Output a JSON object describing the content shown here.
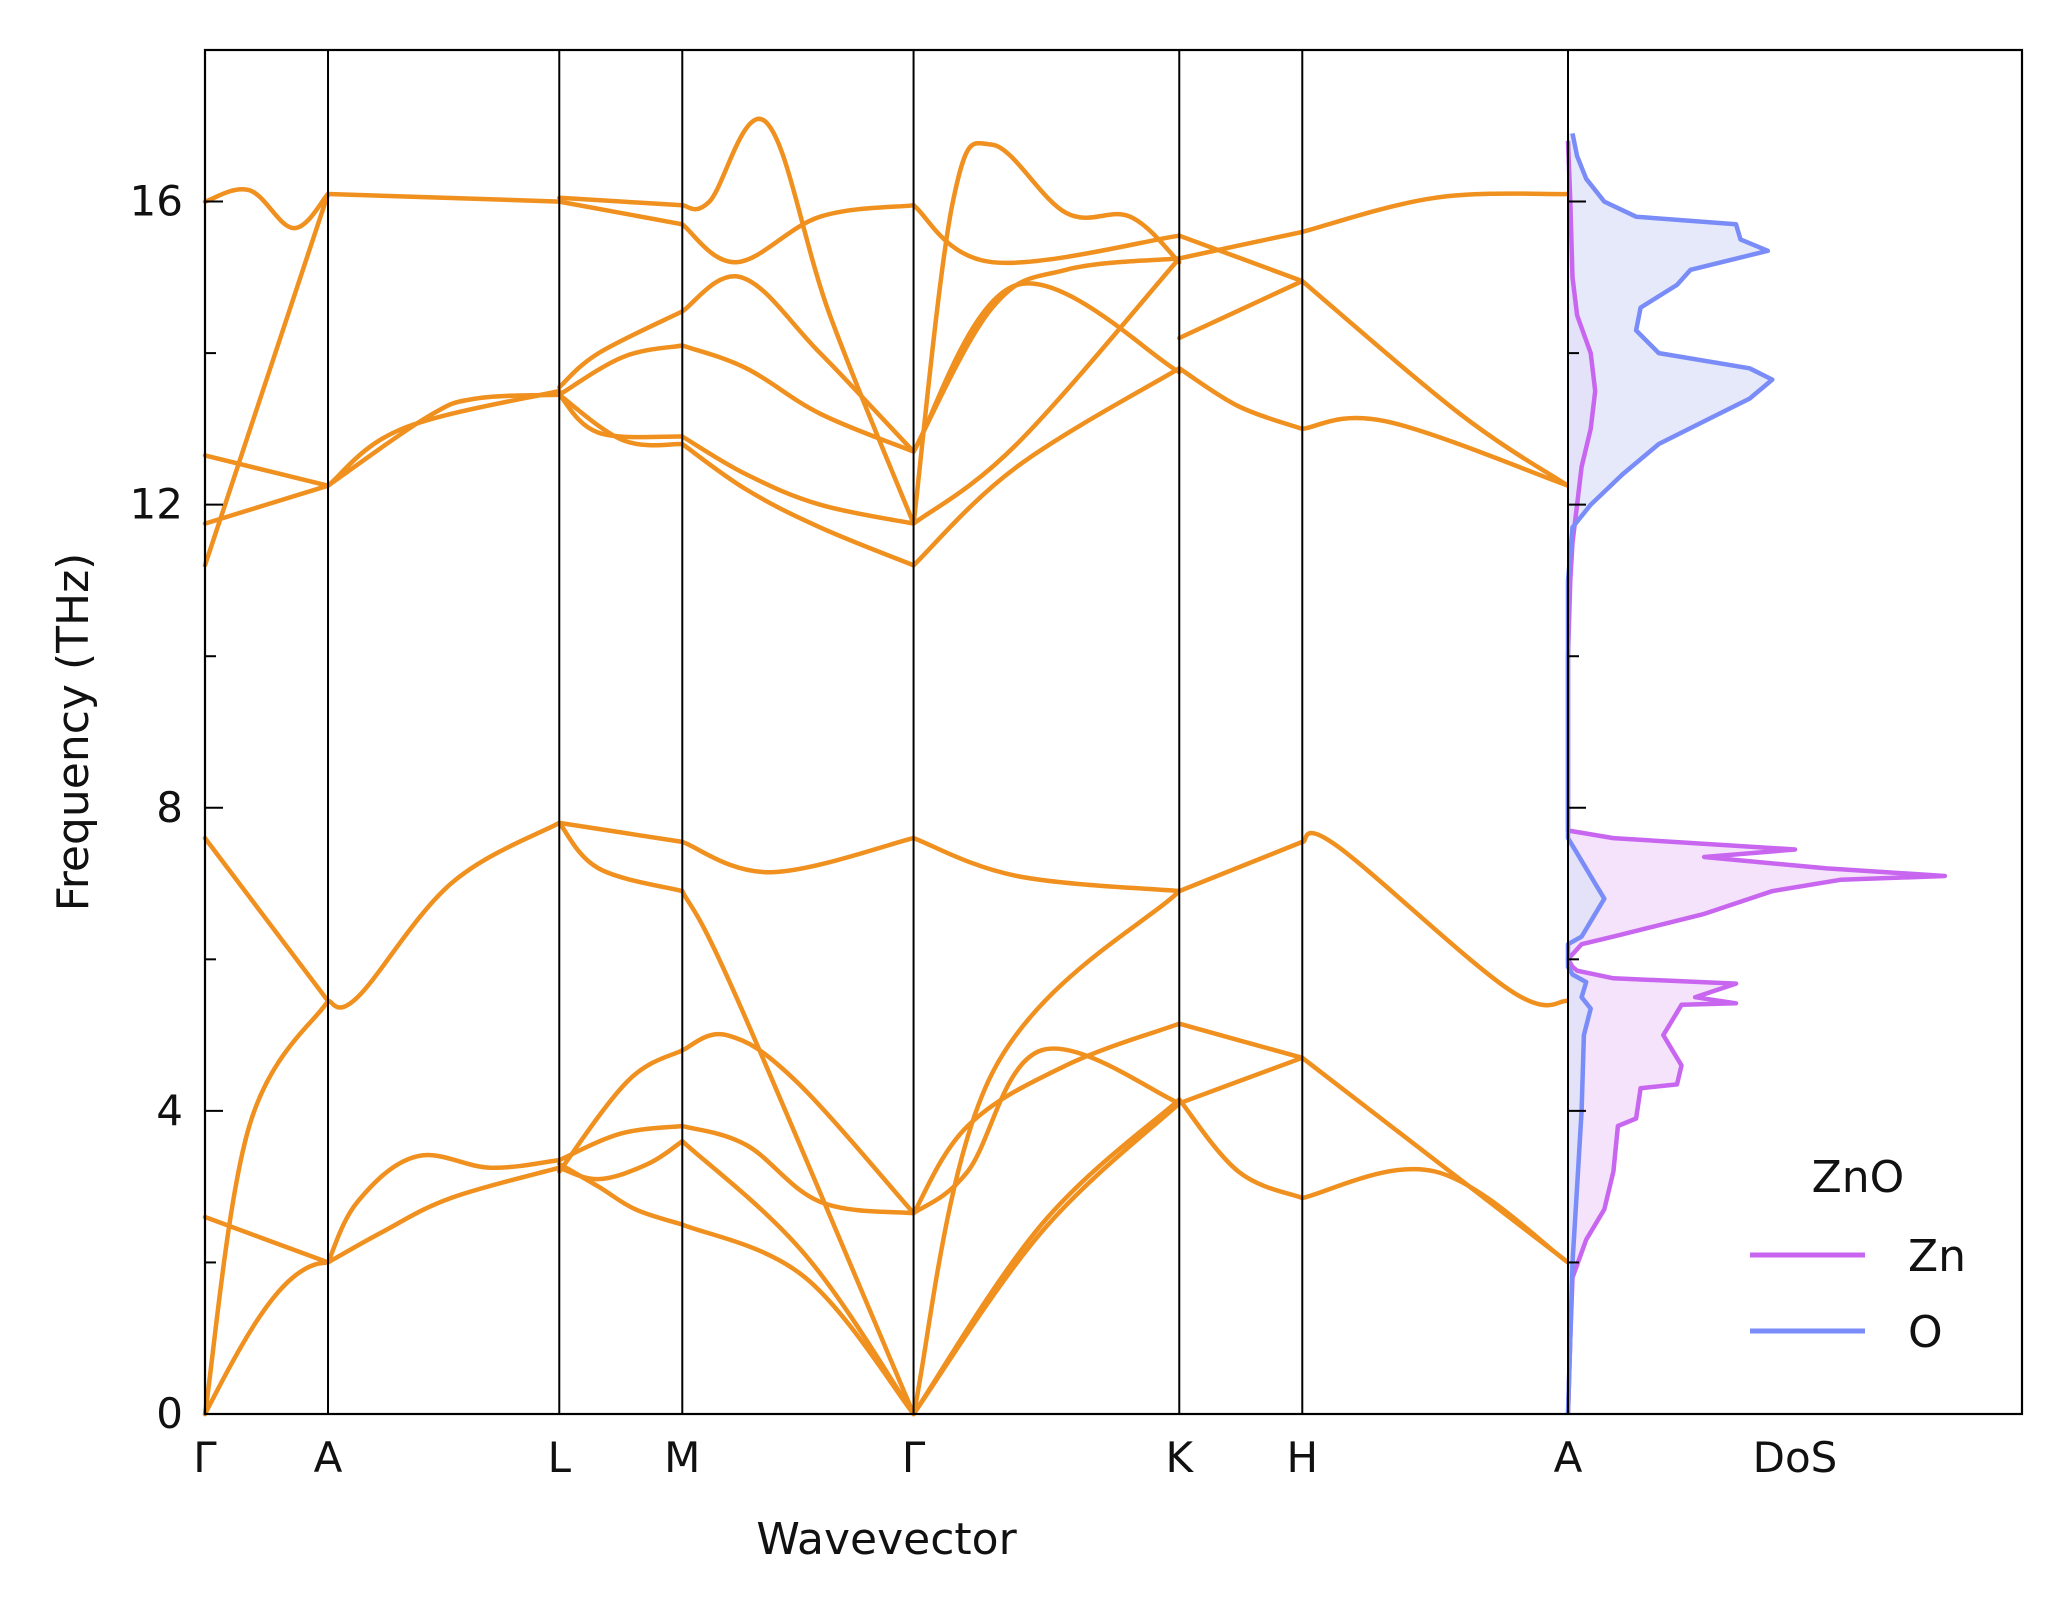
{
  "chart_data": {
    "type": "line",
    "title": "",
    "xlabel": "Wavevector",
    "ylabel": "Frequency (THz)",
    "ylim": [
      0,
      18
    ],
    "yticks": [
      0,
      4,
      8,
      12,
      16
    ],
    "grid": false,
    "band_color": "#f0901e",
    "segment_line_color": "#000000",
    "high_symmetry_points": [
      {
        "label": "Γ",
        "x": 0.0
      },
      {
        "label": "A",
        "x": 0.5
      },
      {
        "label": "L",
        "x": 1.44
      },
      {
        "label": "M",
        "x": 1.94
      },
      {
        "label": "Γ",
        "x": 2.88
      },
      {
        "label": "K",
        "x": 3.96
      },
      {
        "label": "H",
        "x": 4.46
      },
      {
        "label": "A",
        "x": 5.54
      }
    ],
    "bands": [
      {
        "x": [
          0.0,
          0.5
        ],
        "y": [
          0.0,
          2.0
        ],
        "shape": "sin"
      },
      {
        "x": [
          0.0,
          0.18,
          0.5
        ],
        "y": [
          0.0,
          3.8,
          5.45
        ]
      },
      {
        "x": [
          0.0,
          0.5
        ],
        "y": [
          2.6,
          2.0
        ]
      },
      {
        "x": [
          0.0,
          0.5
        ],
        "y": [
          7.6,
          5.45
        ]
      },
      {
        "x": [
          0.0,
          0.5
        ],
        "y": [
          11.2,
          16.1
        ]
      },
      {
        "x": [
          0.0,
          0.5
        ],
        "y": [
          11.75,
          12.25
        ]
      },
      {
        "x": [
          0.0,
          0.5
        ],
        "y": [
          12.65,
          12.25
        ]
      },
      {
        "x": [
          0.0,
          0.18,
          0.36,
          0.5
        ],
        "y": [
          16.0,
          16.15,
          15.65,
          16.1
        ]
      },
      {
        "x": [
          0.5,
          0.62,
          0.86,
          1.16,
          1.44
        ],
        "y": [
          2.0,
          2.8,
          3.4,
          3.25,
          3.35
        ]
      },
      {
        "x": [
          0.5,
          0.72,
          1.0,
          1.44
        ],
        "y": [
          2.0,
          2.4,
          2.85,
          3.25
        ]
      },
      {
        "x": [
          0.5,
          0.62,
          1.0,
          1.44
        ],
        "y": [
          5.45,
          5.5,
          7.0,
          7.8
        ]
      },
      {
        "x": [
          0.5,
          0.8,
          1.44
        ],
        "y": [
          12.25,
          13.0,
          13.5
        ]
      },
      {
        "x": [
          0.5,
          0.9,
          1.1,
          1.44
        ],
        "y": [
          12.25,
          13.15,
          13.4,
          13.45
        ]
      },
      {
        "x": [
          0.5,
          1.44
        ],
        "y": [
          16.1,
          16.0
        ]
      },
      {
        "x": [
          1.44,
          1.69,
          1.94
        ],
        "y": [
          3.35,
          3.7,
          3.8
        ]
      },
      {
        "x": [
          1.44,
          1.6,
          1.75,
          1.94
        ],
        "y": [
          3.3,
          3.0,
          2.7,
          2.5
        ]
      },
      {
        "x": [
          1.44,
          1.72,
          1.94
        ],
        "y": [
          3.2,
          4.4,
          4.8
        ]
      },
      {
        "x": [
          1.44,
          1.6,
          1.8,
          1.94
        ],
        "y": [
          3.25,
          3.1,
          3.3,
          3.6
        ]
      },
      {
        "x": [
          1.44,
          1.6,
          1.94
        ],
        "y": [
          7.8,
          7.2,
          6.9
        ]
      },
      {
        "x": [
          1.44,
          1.94
        ],
        "y": [
          7.8,
          7.55
        ]
      },
      {
        "x": [
          1.44,
          1.6,
          1.94
        ],
        "y": [
          13.55,
          14.0,
          14.55
        ]
      },
      {
        "x": [
          1.44,
          1.7,
          1.94
        ],
        "y": [
          13.45,
          13.95,
          14.1
        ]
      },
      {
        "x": [
          1.44,
          1.6,
          1.94
        ],
        "y": [
          13.45,
          12.95,
          12.9
        ]
      },
      {
        "x": [
          1.44,
          1.7,
          1.94
        ],
        "y": [
          13.45,
          12.85,
          12.8
        ]
      },
      {
        "x": [
          1.44,
          1.94
        ],
        "y": [
          16.0,
          15.7
        ]
      },
      {
        "x": [
          1.44,
          1.94
        ],
        "y": [
          16.05,
          15.95
        ]
      },
      {
        "x": [
          1.94,
          2.44,
          2.88
        ],
        "y": [
          2.5,
          1.8,
          0.0
        ]
      },
      {
        "x": [
          1.94,
          2.44,
          2.88
        ],
        "y": [
          3.6,
          2.1,
          0.0
        ]
      },
      {
        "x": [
          1.94,
          2.2,
          2.5,
          2.88
        ],
        "y": [
          3.8,
          3.55,
          2.8,
          2.65
        ]
      },
      {
        "x": [
          1.94,
          2.12,
          2.4,
          2.88
        ],
        "y": [
          4.8,
          5.0,
          4.4,
          2.65
        ]
      },
      {
        "x": [
          1.94,
          2.16,
          2.88
        ],
        "y": [
          6.9,
          5.5,
          0.0
        ]
      },
      {
        "x": [
          1.94,
          2.3,
          2.88
        ],
        "y": [
          7.55,
          7.15,
          7.6
        ]
      },
      {
        "x": [
          1.94,
          2.2,
          2.5,
          2.88
        ],
        "y": [
          12.8,
          12.2,
          11.7,
          11.2
        ]
      },
      {
        "x": [
          1.94,
          2.2,
          2.5,
          2.88
        ],
        "y": [
          12.9,
          12.4,
          12.0,
          11.75
        ]
      },
      {
        "x": [
          1.94,
          2.2,
          2.5,
          2.88
        ],
        "y": [
          14.1,
          13.8,
          13.2,
          12.7
        ]
      },
      {
        "x": [
          1.94,
          2.18,
          2.5,
          2.88
        ],
        "y": [
          14.55,
          15.0,
          14.0,
          12.7
        ]
      },
      {
        "x": [
          1.94,
          2.16,
          2.5,
          2.88
        ],
        "y": [
          15.7,
          15.2,
          15.8,
          15.95
        ]
      },
      {
        "x": [
          1.94,
          2.05,
          2.28,
          2.54,
          2.88
        ],
        "y": [
          15.95,
          16.0,
          17.05,
          14.5,
          11.75
        ]
      },
      {
        "x": [
          2.88,
          3.4,
          3.96
        ],
        "y": [
          0.0,
          2.4,
          4.1
        ]
      },
      {
        "x": [
          2.88,
          3.4,
          3.96
        ],
        "y": [
          0.0,
          2.5,
          4.15
        ]
      },
      {
        "x": [
          2.88,
          3.2,
          3.96
        ],
        "y": [
          0.0,
          4.5,
          6.9
        ]
      },
      {
        "x": [
          2.88,
          3.1,
          3.4,
          3.96
        ],
        "y": [
          2.65,
          3.2,
          4.8,
          4.1
        ]
      },
      {
        "x": [
          2.88,
          3.1,
          3.5,
          3.96
        ],
        "y": [
          2.65,
          3.8,
          4.6,
          5.15
        ]
      },
      {
        "x": [
          2.88,
          3.3,
          3.96
        ],
        "y": [
          7.6,
          7.1,
          6.9
        ]
      },
      {
        "x": [
          2.88,
          3.3,
          3.96
        ],
        "y": [
          11.2,
          12.5,
          13.8
        ]
      },
      {
        "x": [
          2.88,
          3.3,
          3.96
        ],
        "y": [
          11.75,
          12.8,
          15.25
        ]
      },
      {
        "x": [
          2.88,
          3.3,
          3.96
        ],
        "y": [
          12.7,
          14.9,
          13.75
        ]
      },
      {
        "x": [
          2.88,
          3.2,
          3.5,
          3.96
        ],
        "y": [
          12.7,
          14.6,
          15.1,
          15.25
        ]
      },
      {
        "x": [
          2.88,
          3.2,
          3.96
        ],
        "y": [
          15.95,
          15.2,
          15.55
        ]
      },
      {
        "x": [
          2.88,
          3.04,
          3.2,
          3.5,
          3.76,
          3.96
        ],
        "y": [
          11.75,
          16.0,
          16.75,
          15.85,
          15.8,
          15.2
        ]
      },
      {
        "x": [
          3.96,
          4.46
        ],
        "y": [
          4.1,
          4.7
        ]
      },
      {
        "x": [
          3.96,
          4.2,
          4.46
        ],
        "y": [
          4.15,
          3.2,
          2.85
        ]
      },
      {
        "x": [
          3.96,
          4.46
        ],
        "y": [
          5.15,
          4.7
        ]
      },
      {
        "x": [
          3.96,
          4.46
        ],
        "y": [
          6.9,
          7.55
        ]
      },
      {
        "x": [
          3.96,
          4.2,
          4.46
        ],
        "y": [
          13.8,
          13.3,
          13.0
        ]
      },
      {
        "x": [
          3.96,
          4.46
        ],
        "y": [
          14.2,
          14.95
        ]
      },
      {
        "x": [
          3.96,
          4.46
        ],
        "y": [
          15.25,
          15.6
        ]
      },
      {
        "x": [
          3.96,
          4.46
        ],
        "y": [
          15.55,
          14.95
        ]
      },
      {
        "x": [
          4.46,
          5.0,
          5.54
        ],
        "y": [
          2.85,
          3.2,
          2.0
        ]
      },
      {
        "x": [
          4.46,
          5.0,
          5.54
        ],
        "y": [
          4.7,
          3.35,
          2.0
        ]
      },
      {
        "x": [
          4.46,
          4.6,
          5.3,
          5.54
        ],
        "y": [
          7.55,
          7.5,
          5.6,
          5.45
        ]
      },
      {
        "x": [
          4.46,
          4.8,
          5.54
        ],
        "y": [
          13.0,
          13.1,
          12.25
        ]
      },
      {
        "x": [
          4.46,
          5.1,
          5.54
        ],
        "y": [
          14.95,
          13.2,
          12.25
        ]
      },
      {
        "x": [
          4.46,
          5.0,
          5.54
        ],
        "y": [
          15.6,
          16.05,
          16.1
        ]
      }
    ],
    "dos": {
      "label": "DoS",
      "legend_title": "ZnO",
      "xlim": [
        0,
        1
      ],
      "series": [
        {
          "name": "Zn",
          "color": "#c866f0",
          "fill": "#f0daf8",
          "points": [
            [
              0.0,
              0
            ],
            [
              0.005,
              1
            ],
            [
              0.01,
              1.8
            ],
            [
              0.04,
              2.3
            ],
            [
              0.08,
              2.7
            ],
            [
              0.1,
              3.2
            ],
            [
              0.11,
              3.8
            ],
            [
              0.15,
              3.9
            ],
            [
              0.16,
              4.3
            ],
            [
              0.24,
              4.35
            ],
            [
              0.25,
              4.6
            ],
            [
              0.23,
              4.8
            ],
            [
              0.21,
              5.0
            ],
            [
              0.24,
              5.3
            ],
            [
              0.25,
              5.4
            ],
            [
              0.37,
              5.42
            ],
            [
              0.28,
              5.5
            ],
            [
              0.37,
              5.68
            ],
            [
              0.1,
              5.75
            ],
            [
              0.02,
              5.85
            ],
            [
              0.01,
              5.9
            ],
            [
              0.0,
              6.0
            ],
            [
              0.03,
              6.2
            ],
            [
              0.1,
              6.3
            ],
            [
              0.3,
              6.6
            ],
            [
              0.45,
              6.9
            ],
            [
              0.6,
              7.05
            ],
            [
              0.83,
              7.1
            ],
            [
              0.57,
              7.2
            ],
            [
              0.3,
              7.35
            ],
            [
              0.5,
              7.45
            ],
            [
              0.1,
              7.6
            ],
            [
              0.0,
              7.7
            ],
            [
              0.0,
              10
            ],
            [
              0.005,
              11.0
            ],
            [
              0.01,
              11.5
            ],
            [
              0.02,
              12.0
            ],
            [
              0.03,
              12.5
            ],
            [
              0.05,
              13.0
            ],
            [
              0.06,
              13.5
            ],
            [
              0.05,
              14.0
            ],
            [
              0.02,
              14.5
            ],
            [
              0.01,
              15.0
            ],
            [
              0.005,
              16.0
            ],
            [
              0.0,
              16.8
            ]
          ]
        },
        {
          "name": "O",
          "color": "#7a8cf8",
          "fill": "#dde2f8",
          "points": [
            [
              0.0,
              0
            ],
            [
              0.005,
              1.0
            ],
            [
              0.01,
              2.0
            ],
            [
              0.02,
              3.0
            ],
            [
              0.03,
              4.0
            ],
            [
              0.035,
              5.0
            ],
            [
              0.05,
              5.35
            ],
            [
              0.03,
              5.5
            ],
            [
              0.04,
              5.7
            ],
            [
              0.01,
              5.8
            ],
            [
              0.0,
              5.9
            ],
            [
              0.0,
              6.2
            ],
            [
              0.03,
              6.3
            ],
            [
              0.08,
              6.8
            ],
            [
              0.06,
              7.0
            ],
            [
              0.03,
              7.3
            ],
            [
              0.0,
              7.6
            ],
            [
              0.0,
              11.0
            ],
            [
              0.01,
              11.7
            ],
            [
              0.05,
              12.0
            ],
            [
              0.12,
              12.4
            ],
            [
              0.2,
              12.8
            ],
            [
              0.3,
              13.1
            ],
            [
              0.4,
              13.4
            ],
            [
              0.45,
              13.65
            ],
            [
              0.4,
              13.8
            ],
            [
              0.2,
              14.0
            ],
            [
              0.15,
              14.3
            ],
            [
              0.16,
              14.6
            ],
            [
              0.24,
              14.9
            ],
            [
              0.27,
              15.1
            ],
            [
              0.44,
              15.35
            ],
            [
              0.38,
              15.5
            ],
            [
              0.37,
              15.7
            ],
            [
              0.15,
              15.8
            ],
            [
              0.08,
              16.0
            ],
            [
              0.04,
              16.3
            ],
            [
              0.02,
              16.6
            ],
            [
              0.01,
              16.9
            ]
          ]
        }
      ]
    }
  }
}
